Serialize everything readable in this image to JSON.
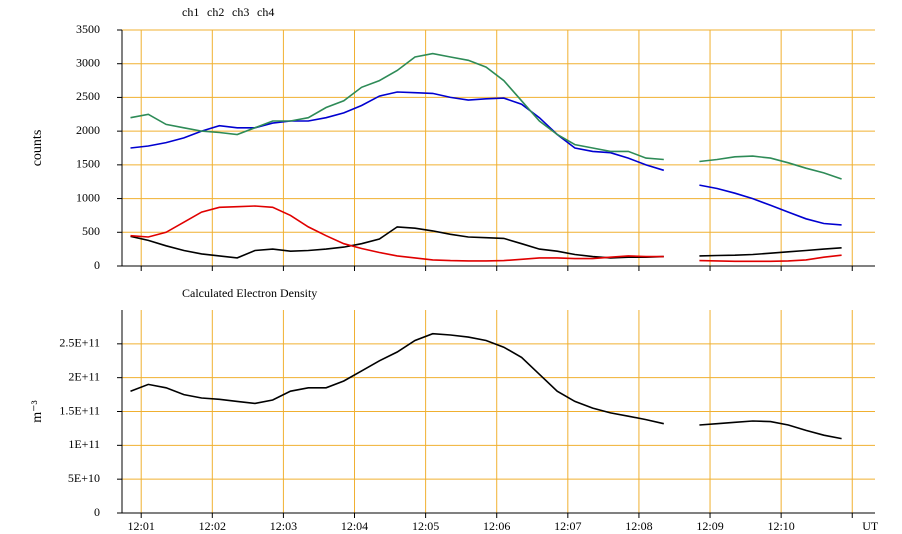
{
  "chart_data": [
    {
      "type": "line",
      "y_label": "counts",
      "x": [
        0.85,
        1.1,
        1.35,
        1.6,
        1.85,
        2.1,
        2.35,
        2.6,
        2.85,
        3.1,
        3.35,
        3.6,
        3.85,
        4.1,
        4.35,
        4.6,
        4.85,
        5.1,
        5.35,
        5.6,
        5.85,
        6.1,
        6.35,
        6.6,
        6.85,
        7.1,
        7.35,
        7.6,
        7.85,
        8.1,
        8.35,
        8.6,
        8.85,
        9.1,
        9.35,
        9.6,
        9.85,
        10.1,
        10.35,
        10.6,
        10.85
      ],
      "series": [
        {
          "name": "ch1",
          "color": "#000000",
          "values": [
            440,
            380,
            300,
            230,
            180,
            150,
            120,
            230,
            250,
            220,
            230,
            250,
            280,
            330,
            400,
            580,
            560,
            520,
            470,
            430,
            420,
            410,
            330,
            250,
            220,
            170,
            140,
            120,
            130,
            130,
            140,
            null,
            150,
            155,
            160,
            170,
            190,
            210,
            230,
            250,
            270
          ]
        },
        {
          "name": "ch2",
          "color": "#e00000",
          "values": [
            450,
            430,
            500,
            650,
            800,
            870,
            880,
            890,
            870,
            750,
            580,
            450,
            330,
            260,
            200,
            150,
            120,
            90,
            80,
            75,
            75,
            80,
            100,
            120,
            120,
            110,
            110,
            130,
            150,
            140,
            140,
            null,
            80,
            75,
            70,
            70,
            70,
            75,
            90,
            130,
            160
          ]
        },
        {
          "name": "ch3",
          "color": "#0000d0",
          "values": [
            1750,
            1780,
            1830,
            1900,
            2000,
            2080,
            2050,
            2050,
            2120,
            2150,
            2150,
            2200,
            2270,
            2380,
            2520,
            2580,
            2570,
            2560,
            2500,
            2460,
            2480,
            2490,
            2400,
            2200,
            1950,
            1750,
            1700,
            1680,
            1600,
            1500,
            1420,
            null,
            1200,
            1150,
            1080,
            1000,
            900,
            800,
            700,
            630,
            610
          ]
        },
        {
          "name": "ch4",
          "color": "#2e8b57",
          "values": [
            2200,
            2250,
            2100,
            2050,
            2000,
            1980,
            1950,
            2050,
            2150,
            2150,
            2200,
            2350,
            2450,
            2650,
            2750,
            2900,
            3100,
            3150,
            3100,
            3050,
            2950,
            2750,
            2450,
            2150,
            1950,
            1800,
            1750,
            1700,
            1700,
            1600,
            1580,
            null,
            1550,
            1580,
            1620,
            1630,
            1600,
            1530,
            1450,
            1380,
            1290
          ]
        }
      ],
      "xlim": [
        0.73,
        11.32
      ],
      "xticks": [
        1,
        2,
        3,
        4,
        5,
        6,
        7,
        8,
        9,
        10,
        11
      ],
      "ylim": [
        0,
        3500
      ],
      "yticks": [
        0,
        500,
        1000,
        1500,
        2000,
        2500,
        3000,
        3500
      ],
      "grid": true
    },
    {
      "type": "line",
      "title": "Calculated Electron Density",
      "y_label": "m⁻³",
      "x": [
        0.85,
        1.1,
        1.35,
        1.6,
        1.85,
        2.1,
        2.35,
        2.6,
        2.85,
        3.1,
        3.35,
        3.6,
        3.85,
        4.1,
        4.35,
        4.6,
        4.85,
        5.1,
        5.35,
        5.6,
        5.85,
        6.1,
        6.35,
        6.6,
        6.85,
        7.1,
        7.35,
        7.6,
        7.85,
        8.1,
        8.35,
        8.6,
        8.85,
        9.1,
        9.35,
        9.6,
        9.85,
        10.1,
        10.35,
        10.6,
        10.85
      ],
      "series": [
        {
          "color": "#000000",
          "values": [
            180000000000.0,
            190000000000.0,
            185000000000.0,
            175000000000.0,
            170000000000.0,
            168000000000.0,
            165000000000.0,
            162000000000.0,
            167000000000.0,
            180000000000.0,
            185000000000.0,
            185000000000.0,
            195000000000.0,
            210000000000.0,
            225000000000.0,
            238000000000.0,
            255000000000.0,
            265000000000.0,
            263000000000.0,
            260000000000.0,
            255000000000.0,
            245000000000.0,
            230000000000.0,
            205000000000.0,
            180000000000.0,
            165000000000.0,
            155000000000.0,
            148000000000.0,
            143000000000.0,
            138000000000.0,
            132000000000.0,
            null,
            130000000000.0,
            132000000000.0,
            134000000000.0,
            136000000000.0,
            135000000000.0,
            130000000000.0,
            122000000000.0,
            115000000000.0,
            110000000000.0
          ]
        }
      ],
      "xlim": [
        0.73,
        11.32
      ],
      "xticks": [
        {
          "value": 1,
          "label": "12:01"
        },
        {
          "value": 2,
          "label": "12:02"
        },
        {
          "value": 3,
          "label": "12:03"
        },
        {
          "value": 4,
          "label": "12:04"
        },
        {
          "value": 5,
          "label": "12:05"
        },
        {
          "value": 6,
          "label": "12:06"
        },
        {
          "value": 7,
          "label": "12:07"
        },
        {
          "value": 8,
          "label": "12:08"
        },
        {
          "value": 9,
          "label": "12:09"
        },
        {
          "value": 10,
          "label": "12:10"
        },
        {
          "value": 11,
          "label": "UT"
        }
      ],
      "ylim": [
        0,
        300000000000.0
      ],
      "yticks": [
        0,
        {
          "value": 50000000000.0,
          "label": "5E+10"
        },
        {
          "value": 100000000000.0,
          "label": "1E+11"
        },
        {
          "value": 150000000000.0,
          "label": "1.5E+11"
        },
        {
          "value": 200000000000.0,
          "label": "2E+11"
        },
        {
          "value": 250000000000.0,
          "label": "2.5E+11"
        }
      ],
      "grid": true
    }
  ]
}
